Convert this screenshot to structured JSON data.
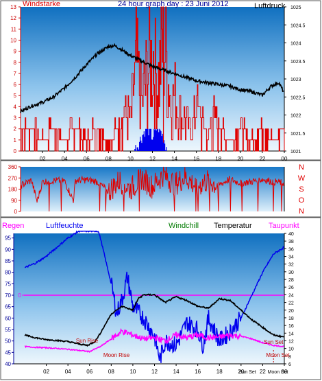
{
  "header": {
    "left_label": "Windstarke",
    "title": "24 hour graph day : 23 Juni 2012",
    "right_label": "Luftdruck"
  },
  "colors": {
    "red": "#e00000",
    "blue": "#0000ee",
    "black": "#000000",
    "green": "#007a00",
    "magenta": "#ff00ff",
    "navy": "#000099",
    "plot_bg_top": "#1878c8",
    "plot_bg_bottom": "#e6f2fb"
  },
  "lower_header": {
    "regen": "Regen",
    "luftfeuchte": "Luftfeuchte",
    "windchill": "Windchill",
    "temperatur": "Temperatur",
    "taupunkt": "Taupunkt"
  },
  "chart_data": [
    {
      "type": "line",
      "panel": "top",
      "x_ticks": [
        "02",
        "04",
        "06",
        "08",
        "10",
        "12",
        "14",
        "16",
        "18",
        "20",
        "22",
        "00"
      ],
      "y_left_ticks": [
        "0",
        "1",
        "2",
        "3",
        "4",
        "5",
        "6",
        "7",
        "8",
        "9",
        "10",
        "11",
        "12",
        "13"
      ],
      "y_right_ticks": [
        "1021",
        "1021.5",
        "1022",
        "1022.5",
        "1023",
        "1023.5",
        "1024",
        "1024.5",
        "1025"
      ],
      "ylim_left": [
        0,
        13
      ],
      "ylim_right": [
        1021,
        1025
      ],
      "series": [
        {
          "key": "pressure",
          "axis": "right",
          "color": "black",
          "points": [
            [
              0,
              1022.1
            ],
            [
              1,
              1022.25
            ],
            [
              2,
              1022.35
            ],
            [
              3,
              1022.5
            ],
            [
              4,
              1022.75
            ],
            [
              5,
              1023.05
            ],
            [
              6,
              1023.4
            ],
            [
              7,
              1023.7
            ],
            [
              8,
              1023.9
            ],
            [
              8.5,
              1023.93
            ],
            [
              9,
              1023.85
            ],
            [
              10,
              1023.65
            ],
            [
              11,
              1023.5
            ],
            [
              12,
              1023.35
            ],
            [
              13,
              1023.25
            ],
            [
              14,
              1023.15
            ],
            [
              15,
              1023.05
            ],
            [
              16,
              1022.95
            ],
            [
              17,
              1022.9
            ],
            [
              18,
              1022.85
            ],
            [
              19,
              1022.8
            ],
            [
              20,
              1022.7
            ],
            [
              21,
              1022.65
            ],
            [
              22,
              1022.55
            ],
            [
              22.8,
              1022.8
            ],
            [
              23.5,
              1022.9
            ],
            [
              24,
              1022.6
            ]
          ]
        },
        {
          "key": "wind_gust",
          "axis": "left",
          "color": "red",
          "points": [
            [
              0,
              2
            ],
            [
              1,
              2
            ],
            [
              2,
              1
            ],
            [
              3,
              2
            ],
            [
              4,
              1
            ],
            [
              5,
              2
            ],
            [
              6,
              1
            ],
            [
              7,
              2
            ],
            [
              8,
              1
            ],
            [
              9,
              2
            ],
            [
              9.5,
              4
            ],
            [
              10,
              3
            ],
            [
              10.5,
              9
            ],
            [
              11,
              5
            ],
            [
              11.5,
              8
            ],
            [
              12,
              10
            ],
            [
              12.5,
              7
            ],
            [
              13,
              13
            ],
            [
              13.3,
              9
            ],
            [
              13.7,
              5
            ],
            [
              14,
              6
            ],
            [
              14.5,
              4
            ],
            [
              15,
              3
            ],
            [
              15.5,
              2
            ],
            [
              16,
              5
            ],
            [
              16.5,
              3
            ],
            [
              17,
              1
            ],
            [
              17.5,
              4
            ],
            [
              18,
              2
            ],
            [
              19,
              1
            ],
            [
              20,
              2
            ],
            [
              21,
              1
            ],
            [
              22,
              2
            ],
            [
              23,
              1
            ],
            [
              24,
              2
            ]
          ]
        },
        {
          "key": "wind_speed",
          "axis": "left",
          "color": "blue",
          "points": [
            [
              10.5,
              0
            ],
            [
              11,
              1
            ],
            [
              11.5,
              2
            ],
            [
              12,
              1
            ],
            [
              12.5,
              2
            ],
            [
              13,
              1
            ],
            [
              13.3,
              0
            ]
          ]
        }
      ]
    },
    {
      "type": "line",
      "panel": "middle",
      "y_left_ticks": [
        "0",
        "90",
        "180",
        "270",
        "360"
      ],
      "y_right_labels": [
        "N",
        "W",
        "S",
        "O",
        "N"
      ],
      "ylim": [
        0,
        360
      ],
      "series": [
        {
          "key": "wind_direction",
          "color": "red",
          "points": [
            [
              0,
              210
            ],
            [
              1,
              250
            ],
            [
              1.5,
              80
            ],
            [
              2,
              240
            ],
            [
              3,
              250
            ],
            [
              4,
              245
            ],
            [
              4.8,
              90
            ],
            [
              5,
              250
            ],
            [
              6,
              255
            ],
            [
              7,
              240
            ],
            [
              8,
              160
            ],
            [
              9,
              250
            ],
            [
              10,
              180
            ],
            [
              11,
              270
            ],
            [
              12,
              200
            ],
            [
              13,
              300
            ],
            [
              14,
              220
            ],
            [
              15,
              280
            ],
            [
              16,
              200
            ],
            [
              17,
              250
            ],
            [
              18,
              210
            ],
            [
              19,
              260
            ],
            [
              20,
              230
            ],
            [
              21,
              240
            ],
            [
              22,
              260
            ],
            [
              23,
              240
            ],
            [
              24,
              230
            ]
          ]
        }
      ]
    },
    {
      "type": "line",
      "panel": "bottom",
      "x_ticks": [
        "02",
        "04",
        "06",
        "08",
        "10",
        "12",
        "14",
        "16",
        "18",
        "20",
        "22",
        "00"
      ],
      "y_left_ticks": [
        "40",
        "45",
        "50",
        "55",
        "60",
        "65",
        "70",
        "75",
        "80",
        "85",
        "90",
        "95"
      ],
      "y_right_ticks": [
        "6",
        "8",
        "10",
        "12",
        "14",
        "16",
        "18",
        "20",
        "22",
        "24",
        "26",
        "28",
        "30",
        "32",
        "34",
        "36",
        "38",
        "40"
      ],
      "y_regen_label": "0",
      "ylim_left": [
        40,
        97
      ],
      "ylim_right": [
        6,
        40
      ],
      "annotations": [
        "Sun Rise",
        "Moon Rise",
        "Sun Set",
        "Moon Set"
      ],
      "series": [
        {
          "key": "humidity",
          "axis": "left",
          "color": "blue",
          "points": [
            [
              0,
              82
            ],
            [
              1,
              84
            ],
            [
              2,
              87
            ],
            [
              3,
              91
            ],
            [
              4,
              95
            ],
            [
              5,
              98
            ],
            [
              6,
              98
            ],
            [
              6.8,
              98
            ],
            [
              7,
              95
            ],
            [
              8,
              75
            ],
            [
              8.5,
              62
            ],
            [
              9,
              68
            ],
            [
              9.5,
              78
            ],
            [
              10,
              65
            ],
            [
              11,
              60
            ],
            [
              12,
              52
            ],
            [
              12.5,
              42
            ],
            [
              13,
              50
            ],
            [
              14,
              48
            ],
            [
              15,
              58
            ],
            [
              16,
              55
            ],
            [
              16.5,
              48
            ],
            [
              17,
              60
            ],
            [
              18,
              50
            ],
            [
              19,
              54
            ],
            [
              20,
              60
            ],
            [
              21,
              70
            ],
            [
              22,
              80
            ],
            [
              23,
              88
            ],
            [
              24,
              91
            ]
          ]
        },
        {
          "key": "temperature",
          "axis": "right",
          "color": "black",
          "points": [
            [
              0,
              13.5
            ],
            [
              1,
              12.8
            ],
            [
              2,
              12.3
            ],
            [
              3,
              12.1
            ],
            [
              4,
              11.8
            ],
            [
              5,
              11.2
            ],
            [
              5.8,
              10.8
            ],
            [
              6.5,
              11.8
            ],
            [
              7,
              14
            ],
            [
              8,
              19
            ],
            [
              9,
              21
            ],
            [
              10,
              20
            ],
            [
              10.5,
              23
            ],
            [
              11,
              24
            ],
            [
              12,
              24
            ],
            [
              13,
              22
            ],
            [
              14,
              23.5
            ],
            [
              15,
              22.5
            ],
            [
              16,
              21
            ],
            [
              17,
              20.5
            ],
            [
              18,
              23
            ],
            [
              19,
              22.5
            ],
            [
              20,
              20
            ],
            [
              21,
              17.5
            ],
            [
              22,
              15.5
            ],
            [
              23,
              13.5
            ],
            [
              24,
              13
            ]
          ]
        },
        {
          "key": "dewpoint",
          "axis": "right",
          "color": "magenta",
          "points": [
            [
              0,
              10.5
            ],
            [
              1,
              10.3
            ],
            [
              2,
              10.2
            ],
            [
              3,
              10
            ],
            [
              4,
              9.8
            ],
            [
              5,
              9.5
            ],
            [
              6,
              9.2
            ],
            [
              7,
              10.5
            ],
            [
              8,
              12.5
            ],
            [
              9,
              14.5
            ],
            [
              10,
              13.5
            ],
            [
              11,
              12.5
            ],
            [
              12,
              12.8
            ],
            [
              13,
              12
            ],
            [
              14,
              13.5
            ],
            [
              15,
              12.8
            ],
            [
              16,
              13.5
            ],
            [
              17,
              12.8
            ],
            [
              18,
              13
            ],
            [
              19,
              13.5
            ],
            [
              20,
              13.2
            ],
            [
              21,
              12.5
            ],
            [
              22,
              11.5
            ],
            [
              23,
              10.8
            ],
            [
              24,
              10.5
            ]
          ]
        },
        {
          "key": "rain",
          "axis": "regen",
          "color": "magenta",
          "points": [
            [
              0,
              0
            ],
            [
              24,
              0
            ]
          ]
        }
      ]
    }
  ]
}
